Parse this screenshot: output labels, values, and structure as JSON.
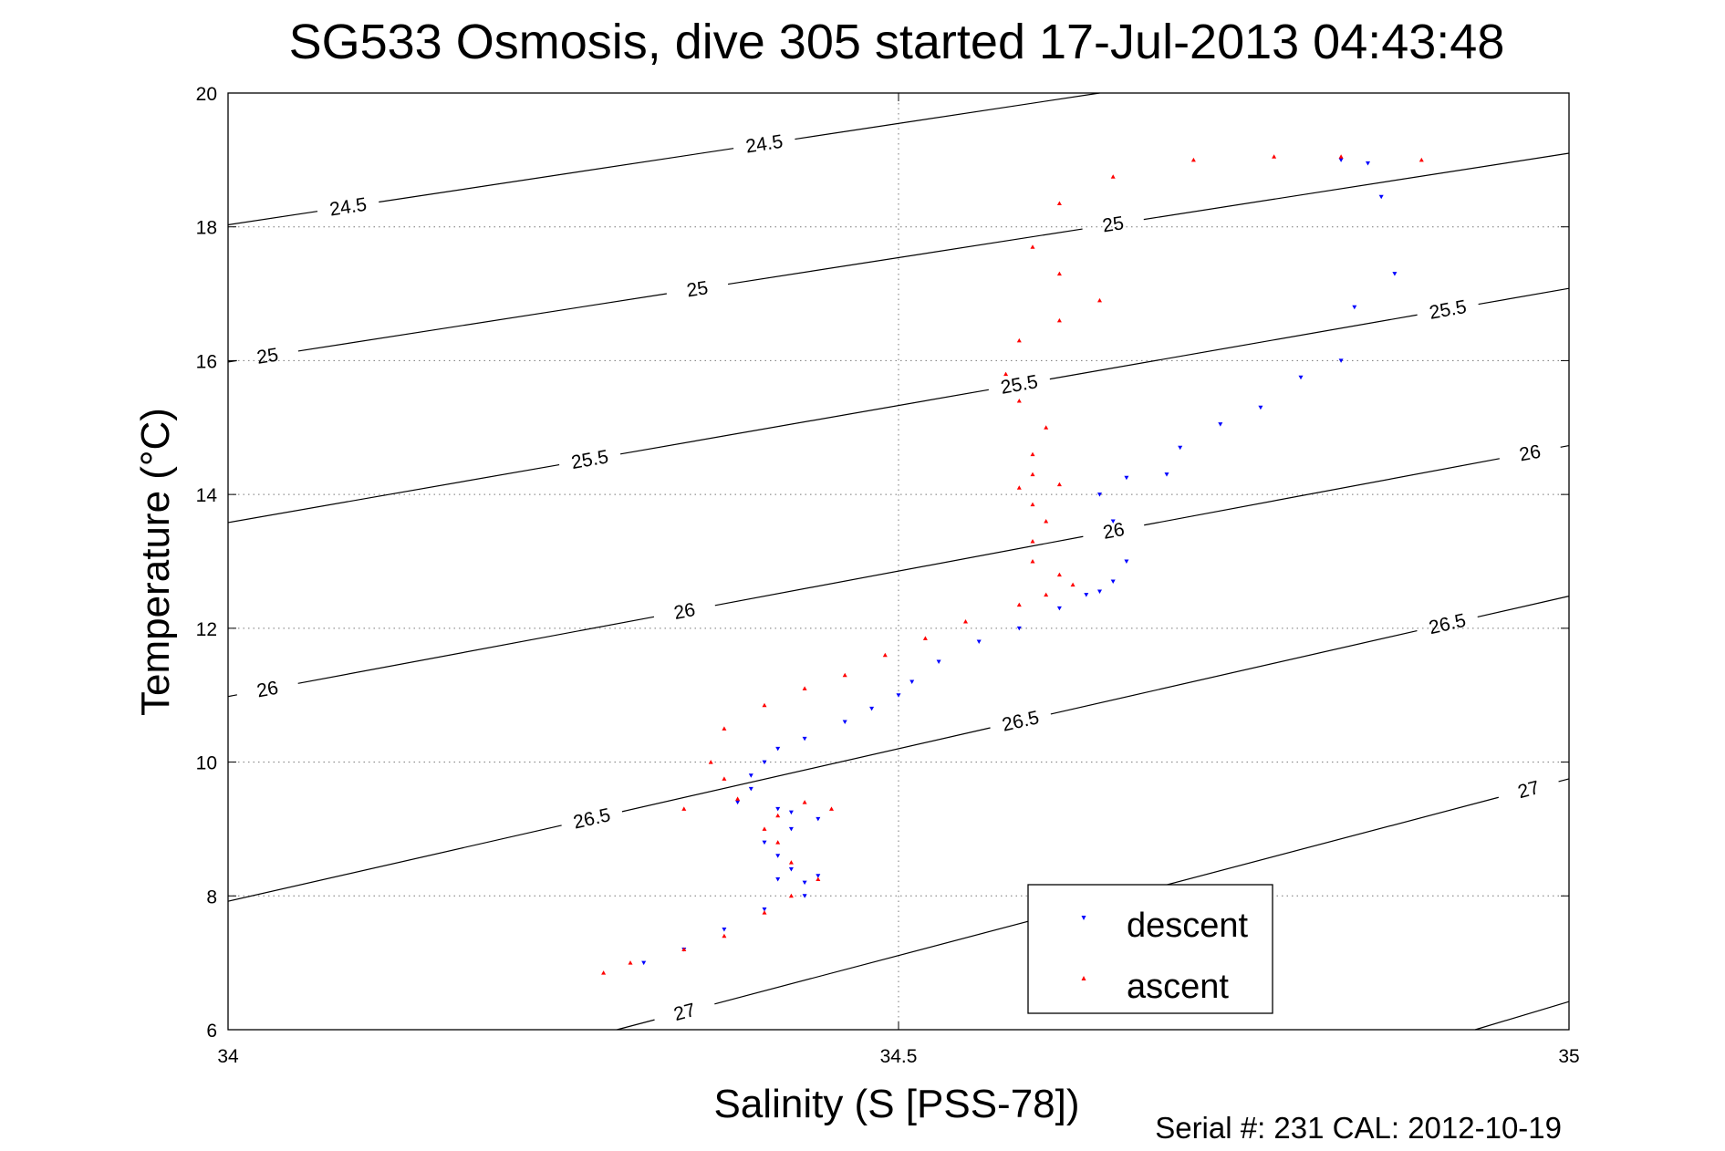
{
  "chart_data": {
    "type": "scatter",
    "title": "SG533 Osmosis, dive 305 started 17-Jul-2013 04:43:48",
    "xlabel": "Salinity (S [PSS-78])",
    "ylabel": "Temperature (°C)",
    "xlim": [
      34,
      35
    ],
    "ylim": [
      6,
      20
    ],
    "x_ticks": [
      "34",
      "34.5",
      "35"
    ],
    "y_ticks": [
      "6",
      "8",
      "10",
      "12",
      "14",
      "16",
      "18",
      "20"
    ],
    "grid": true,
    "legend_position": "bottom-right",
    "footer": "Serial #: 231  CAL: 2012-10-19",
    "density_contours": [
      {
        "label": "24.5",
        "points": [
          [
            34.0,
            18.03
          ],
          [
            34.65,
            20.0
          ]
        ],
        "label_at": [
          [
            34.09,
            18.24
          ],
          [
            34.4,
            19.22
          ]
        ]
      },
      {
        "label": "25",
        "points": [
          [
            34.0,
            15.98
          ],
          [
            35.0,
            19.1
          ]
        ],
        "label_at": [
          [
            34.03,
            16.0
          ],
          [
            34.35,
            17.07
          ],
          [
            34.66,
            18.04
          ]
        ]
      },
      {
        "label": "25.5",
        "points": [
          [
            34.0,
            13.58
          ],
          [
            35.0,
            17.08
          ]
        ],
        "label_at": [
          [
            34.27,
            14.5
          ],
          [
            34.59,
            15.65
          ],
          [
            34.91,
            16.72
          ]
        ]
      },
      {
        "label": "26",
        "points": [
          [
            34.0,
            10.98
          ],
          [
            35.0,
            14.73
          ]
        ],
        "label_at": [
          [
            34.03,
            11.03
          ],
          [
            34.34,
            12.3
          ],
          [
            34.66,
            13.5
          ],
          [
            34.97,
            14.72
          ]
        ]
      },
      {
        "label": "26.5",
        "points": [
          [
            34.0,
            7.92
          ],
          [
            35.0,
            12.48
          ]
        ],
        "label_at": [
          [
            34.27,
            9.27
          ],
          [
            34.59,
            10.7
          ],
          [
            34.91,
            12.0
          ]
        ]
      },
      {
        "label": "27",
        "points": [
          [
            34.29,
            6.0
          ],
          [
            35.0,
            9.75
          ]
        ],
        "label_at": [
          [
            34.34,
            6.3
          ],
          [
            34.97,
            9.58
          ]
        ]
      },
      {
        "label": "",
        "points": [
          [
            34.93,
            6.0
          ],
          [
            35.0,
            6.42
          ]
        ],
        "label_at": []
      }
    ],
    "series": [
      {
        "name": "descent",
        "color": "#0000ff",
        "marker": "triangle-down",
        "x": [
          34.83,
          34.85,
          34.86,
          34.87,
          34.84,
          34.83,
          34.8,
          34.77,
          34.74,
          34.71,
          34.7,
          34.67,
          34.65,
          34.66,
          34.67,
          34.66,
          34.65,
          34.64,
          34.62,
          34.59,
          34.56,
          34.53,
          34.51,
          34.5,
          34.48,
          34.46,
          34.43,
          34.41,
          34.4,
          34.39,
          34.39,
          34.38,
          34.41,
          34.42,
          34.44,
          34.42,
          34.4,
          34.41,
          34.42,
          34.41,
          34.43,
          34.44,
          34.43,
          34.4,
          34.37,
          34.34,
          34.31
        ],
        "y": [
          19.0,
          18.95,
          18.45,
          17.3,
          16.8,
          16.0,
          15.75,
          15.3,
          15.05,
          14.7,
          14.3,
          14.25,
          14.0,
          13.6,
          13.0,
          12.7,
          12.55,
          12.5,
          12.3,
          12.0,
          11.8,
          11.5,
          11.2,
          11.0,
          10.8,
          10.6,
          10.35,
          10.2,
          10.0,
          9.8,
          9.6,
          9.4,
          9.3,
          9.25,
          9.15,
          9.0,
          8.8,
          8.6,
          8.4,
          8.25,
          8.2,
          8.3,
          8.0,
          7.8,
          7.5,
          7.2,
          7.0
        ]
      },
      {
        "name": "ascent",
        "color": "#ff0000",
        "marker": "triangle-up",
        "x": [
          34.89,
          34.83,
          34.78,
          34.72,
          34.66,
          34.62,
          34.6,
          34.62,
          34.65,
          34.62,
          34.59,
          34.58,
          34.59,
          34.61,
          34.6,
          34.6,
          34.59,
          34.6,
          34.62,
          34.61,
          34.6,
          34.6,
          34.62,
          34.63,
          34.61,
          34.59,
          34.55,
          34.52,
          34.49,
          34.46,
          34.43,
          34.4,
          34.37,
          34.36,
          34.37,
          34.34,
          34.38,
          34.43,
          34.45,
          34.41,
          34.4,
          34.41,
          34.42,
          34.44,
          34.42,
          34.4,
          34.37,
          34.34,
          34.3,
          34.28
        ],
        "y": [
          19.0,
          19.05,
          19.05,
          19.0,
          18.75,
          18.35,
          17.7,
          17.3,
          16.9,
          16.6,
          16.3,
          15.8,
          15.4,
          15.0,
          14.6,
          14.3,
          14.1,
          13.85,
          14.15,
          13.6,
          13.3,
          13.0,
          12.8,
          12.65,
          12.5,
          12.35,
          12.1,
          11.85,
          11.6,
          11.3,
          11.1,
          10.85,
          10.5,
          10.0,
          9.75,
          9.3,
          9.45,
          9.4,
          9.3,
          9.2,
          9.0,
          8.8,
          8.5,
          8.25,
          8.0,
          7.75,
          7.4,
          7.2,
          7.0,
          6.85
        ]
      }
    ]
  }
}
